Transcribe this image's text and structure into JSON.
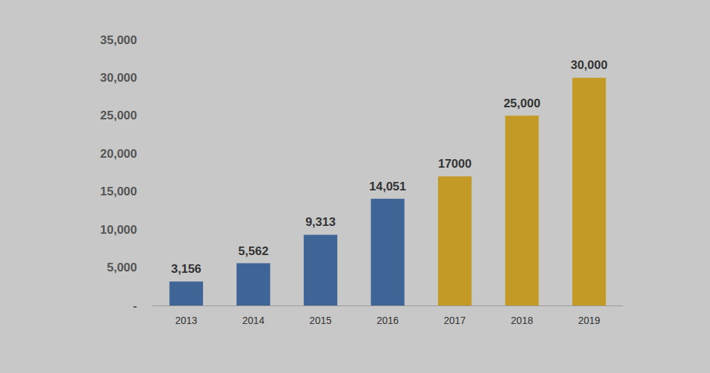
{
  "chart_data": {
    "type": "bar",
    "categories": [
      "2013",
      "2014",
      "2015",
      "2016",
      "2017",
      "2018",
      "2019"
    ],
    "values": [
      3156,
      5562,
      9313,
      14051,
      17000,
      25000,
      30000
    ],
    "value_labels": [
      "3,156",
      "5,562",
      "9,313",
      "14,051",
      "17000",
      "25,000",
      "30,000"
    ],
    "colors": [
      "#3f6496",
      "#3f6496",
      "#3f6496",
      "#3f6496",
      "#c49a27",
      "#c49a27",
      "#c49a27"
    ],
    "ylim": [
      0,
      35000
    ],
    "yticks": [
      {
        "value": 0,
        "label": "-"
      },
      {
        "value": 5000,
        "label": "5,000"
      },
      {
        "value": 10000,
        "label": "10,000"
      },
      {
        "value": 15000,
        "label": "15,000"
      },
      {
        "value": 20000,
        "label": "20,000"
      },
      {
        "value": 25000,
        "label": "25,000"
      },
      {
        "value": 30000,
        "label": "30,000"
      },
      {
        "value": 35000,
        "label": "35,000"
      }
    ],
    "grid": false,
    "data_labels": true
  }
}
